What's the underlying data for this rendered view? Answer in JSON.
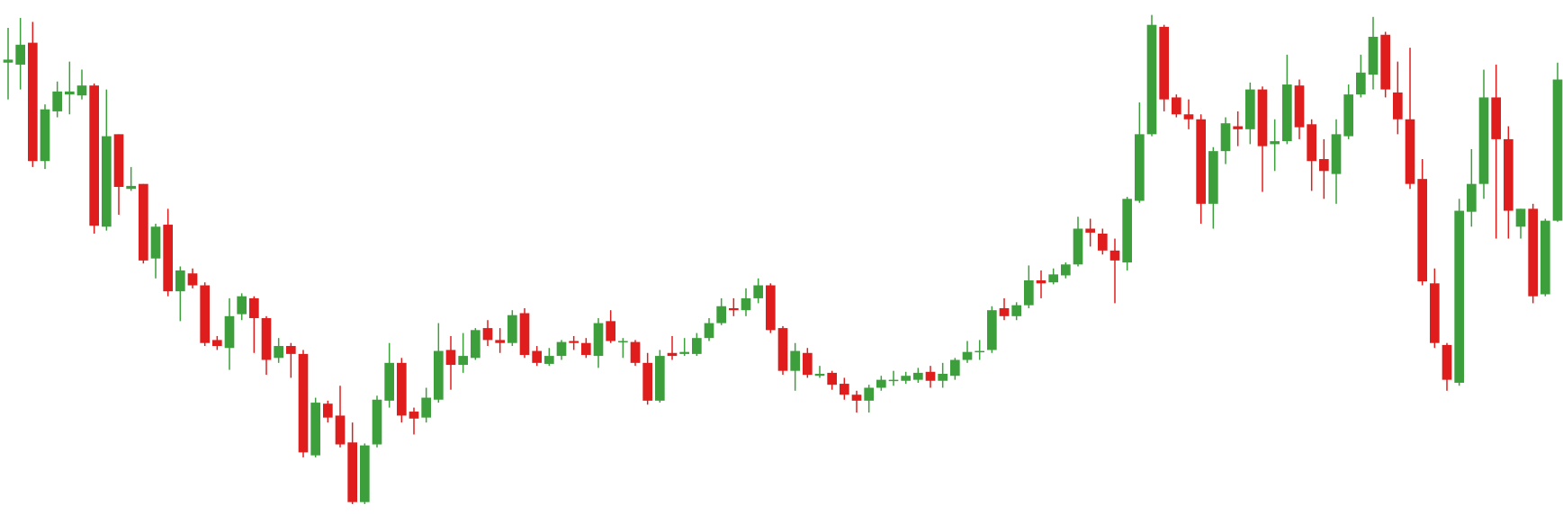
{
  "chart_data": {
    "type": "candlestick",
    "up_color": "#3c9f3c",
    "down_color": "#e01d1d",
    "ylim": [
      0,
      517
    ],
    "open": [
      454,
      452,
      474,
      355,
      405,
      422,
      421,
      431,
      289,
      382,
      327,
      332,
      257,
      291,
      224,
      242,
      230,
      175,
      167,
      201,
      217,
      197,
      157,
      169,
      161,
      59,
      111,
      99,
      72,
      12,
      70,
      114,
      152,
      103,
      97,
      115,
      165,
      150,
      157,
      187,
      175,
      172,
      202,
      164,
      151,
      159,
      174,
      172,
      159,
      194,
      173,
      173,
      152,
      114,
      162,
      161,
      161,
      177,
      192,
      207,
      205,
      217,
      230,
      187,
      144,
      162,
      139,
      142,
      131,
      120,
      114,
      127,
      135,
      134,
      135,
      143,
      134,
      139,
      155,
      164,
      165,
      207,
      199,
      210,
      235,
      233,
      240,
      251,
      287,
      282,
      265,
      253,
      315,
      382,
      490,
      419,
      402,
      397,
      312,
      365,
      390,
      387,
      427,
      372,
      375,
      431,
      392,
      357,
      342,
      380,
      422,
      442,
      482,
      424,
      397,
      337,
      232,
      170,
      132,
      304,
      332,
      419,
      377,
      289,
      307,
      221,
      295
    ],
    "high": [
      489,
      499,
      495,
      412,
      435,
      455,
      447,
      433,
      427,
      382,
      349,
      332,
      292,
      307,
      249,
      247,
      233,
      179,
      217,
      222,
      219,
      199,
      177,
      172,
      165,
      117,
      114,
      129,
      92,
      71,
      119,
      172,
      157,
      107,
      127,
      192,
      179,
      182,
      187,
      195,
      187,
      205,
      207,
      169,
      167,
      175,
      179,
      177,
      197,
      205,
      177,
      175,
      162,
      165,
      179,
      177,
      182,
      197,
      217,
      217,
      227,
      237,
      232,
      189,
      172,
      167,
      149,
      144,
      137,
      124,
      130,
      139,
      144,
      143,
      147,
      149,
      152,
      157,
      174,
      175,
      209,
      217,
      213,
      250,
      245,
      247,
      253,
      299,
      297,
      287,
      277,
      319,
      414,
      502,
      492,
      422,
      417,
      402,
      369,
      399,
      405,
      434,
      430,
      397,
      462,
      437,
      397,
      377,
      397,
      432,
      462,
      500,
      485,
      455,
      469,
      357,
      247,
      172,
      317,
      367,
      447,
      452,
      390,
      307,
      312,
      297,
      454
    ],
    "low": [
      417,
      427,
      349,
      347,
      399,
      402,
      417,
      282,
      285,
      301,
      325,
      252,
      237,
      219,
      194,
      227,
      169,
      165,
      145,
      195,
      162,
      140,
      152,
      137,
      57,
      57,
      92,
      67,
      10,
      10,
      67,
      107,
      92,
      80,
      92,
      112,
      125,
      142,
      155,
      169,
      162,
      169,
      157,
      149,
      149,
      155,
      165,
      157,
      147,
      172,
      157,
      149,
      110,
      112,
      155,
      159,
      159,
      174,
      190,
      199,
      199,
      212,
      182,
      140,
      124,
      137,
      137,
      125,
      115,
      102,
      102,
      124,
      129,
      131,
      132,
      127,
      127,
      135,
      152,
      155,
      162,
      195,
      195,
      207,
      217,
      231,
      237,
      249,
      269,
      261,
      212,
      245,
      313,
      380,
      405,
      399,
      387,
      292,
      287,
      352,
      370,
      372,
      324,
      345,
      372,
      377,
      325,
      317,
      312,
      377,
      419,
      427,
      419,
      382,
      327,
      230,
      167,
      124,
      129,
      289,
      317,
      277,
      277,
      277,
      212,
      219,
      294
    ],
    "close": [
      457,
      472,
      355,
      407,
      425,
      425,
      431,
      290,
      380,
      329,
      330,
      255,
      289,
      224,
      245,
      230,
      172,
      169,
      199,
      219,
      197,
      155,
      169,
      161,
      62,
      112,
      97,
      70,
      12,
      69,
      115,
      152,
      99,
      96,
      117,
      164,
      150,
      159,
      185,
      175,
      172,
      200,
      160,
      152,
      159,
      173,
      172,
      160,
      192,
      174,
      174,
      152,
      114,
      159,
      159,
      163,
      177,
      192,
      209,
      205,
      217,
      230,
      185,
      144,
      164,
      140,
      141,
      130,
      120,
      114,
      127,
      135,
      135,
      139,
      142,
      134,
      141,
      155,
      163,
      164,
      205,
      199,
      210,
      235,
      232,
      241,
      251,
      287,
      283,
      265,
      255,
      317,
      382,
      492,
      417,
      402,
      397,
      312,
      365,
      393,
      387,
      427,
      370,
      375,
      432,
      389,
      355,
      345,
      382,
      422,
      444,
      480,
      427,
      397,
      332,
      234,
      172,
      135,
      305,
      332,
      419,
      377,
      305,
      307,
      219,
      295,
      437
    ]
  }
}
